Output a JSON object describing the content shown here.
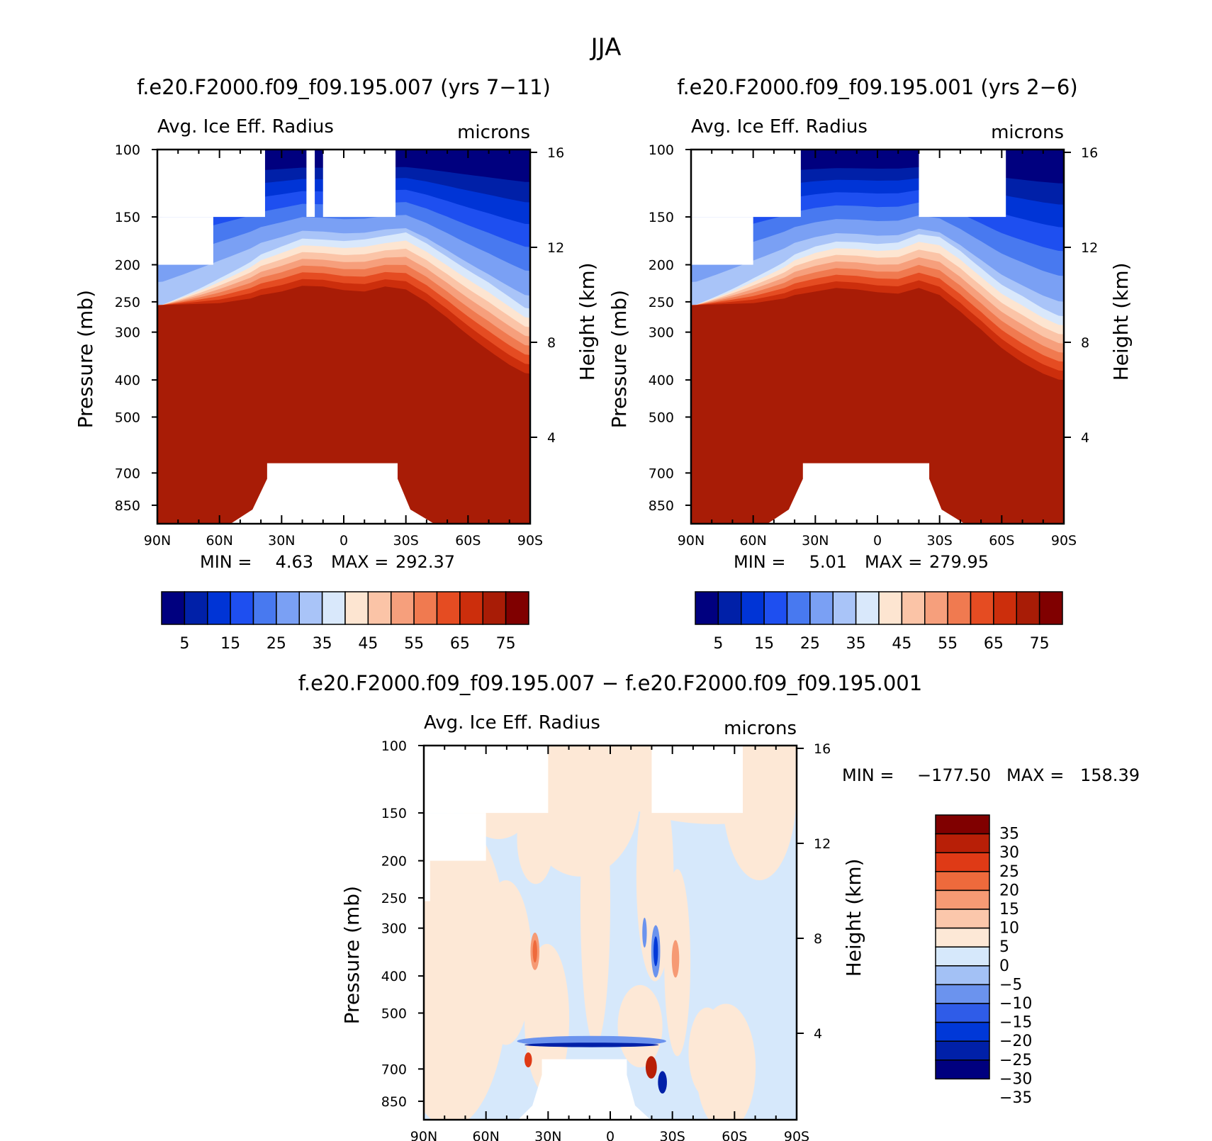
{
  "page_title": "JJA",
  "colors": {
    "seq": [
      "#00007f",
      "#0020a8",
      "#0034d6",
      "#1e4ff0",
      "#4879f0",
      "#7aa0f4",
      "#a9c4f8",
      "#d9e8fb",
      "#fde5d1",
      "#fbc4a7",
      "#f69f7c",
      "#f07a50",
      "#e54c22",
      "#cc2e0c",
      "#a81c06",
      "#800000"
    ],
    "div": [
      "#00007f",
      "#0020a8",
      "#0038d8",
      "#2f5ce8",
      "#6b93ee",
      "#a3c1f5",
      "#d6e8fb",
      "#fde8d6",
      "#fbc7ab",
      "#f69a74",
      "#ee6a3c",
      "#df3a16",
      "#b81f07",
      "#800000"
    ]
  },
  "chart_data": [
    {
      "type": "contour",
      "title": "f.e20.F2000.f09_f09.195.007 (yrs 7−11)",
      "subtitle_left": "Avg. Ice Eff. Radius",
      "subtitle_right": "microns",
      "ylabel": "Pressure (mb)",
      "ylabel_right": "Height (km)",
      "x_ticks": [
        "90N",
        "60N",
        "30N",
        "0",
        "30S",
        "60S",
        "90S"
      ],
      "x_range": [
        90,
        -90
      ],
      "y_range_mb": [
        100,
        950
      ],
      "y_ticks": [
        100,
        150,
        200,
        250,
        300,
        400,
        500,
        700,
        850
      ],
      "y_ticks_right_km": [
        4,
        8,
        12,
        16
      ],
      "stats_min_label": "MIN =",
      "stats_min": "4.63",
      "stats_max_label": "MAX =",
      "stats_max": "292.37",
      "colorbar_labels": [
        "5",
        "15",
        "25",
        "35",
        "45",
        "55",
        "65",
        "75"
      ],
      "colorbar_levels": [
        0,
        5,
        10,
        15,
        20,
        25,
        30,
        35,
        40,
        45,
        50,
        55,
        60,
        65,
        70,
        75
      ],
      "contour_tops_mb": {
        "latitudes": [
          88,
          60,
          45,
          40,
          30,
          20,
          10,
          0,
          -10,
          -20,
          -30,
          -40,
          -50,
          -60,
          -70,
          -80,
          -88
        ],
        "top_75_mb": [
          255,
          252,
          245,
          240,
          235,
          227,
          228,
          233,
          235,
          228,
          232,
          250,
          275,
          305,
          335,
          365,
          385
        ],
        "gradient_thickness_mb": [
          0,
          60,
          80,
          85,
          90,
          90,
          90,
          95,
          100,
          95,
          105,
          115,
          130,
          150,
          170,
          185,
          190
        ]
      },
      "missing_regions": [
        {
          "lat_from": 90,
          "lat_to": 38,
          "p_from": 100,
          "p_to": 150
        },
        {
          "lat_from": 90,
          "lat_to": 63,
          "p_from": 150,
          "p_to": 200
        },
        {
          "lat_from": 18,
          "lat_to": 14,
          "p_from": 100,
          "p_to": 150
        },
        {
          "lat_from": 10,
          "lat_to": -25,
          "p_from": 100,
          "p_to": 150
        },
        {
          "lat_from": 37,
          "lat_to": -26,
          "p_from": 660,
          "p_to": 950,
          "shape": "topography"
        }
      ]
    },
    {
      "type": "contour",
      "title": "f.e20.F2000.f09_f09.195.001 (yrs 2−6)",
      "subtitle_left": "Avg. Ice Eff. Radius",
      "subtitle_right": "microns",
      "ylabel": "Pressure (mb)",
      "ylabel_right": "Height (km)",
      "x_ticks": [
        "90N",
        "60N",
        "30N",
        "0",
        "30S",
        "60S",
        "90S"
      ],
      "x_range": [
        90,
        -90
      ],
      "y_range_mb": [
        100,
        950
      ],
      "y_ticks": [
        100,
        150,
        200,
        250,
        300,
        400,
        500,
        700,
        850
      ],
      "y_ticks_right_km": [
        4,
        8,
        12,
        16
      ],
      "stats_min_label": "MIN =",
      "stats_min": "5.01",
      "stats_max_label": "MAX =",
      "stats_max": "279.95",
      "colorbar_labels": [
        "5",
        "15",
        "25",
        "35",
        "45",
        "55",
        "65",
        "75"
      ],
      "colorbar_levels": [
        0,
        5,
        10,
        15,
        20,
        25,
        30,
        35,
        40,
        45,
        50,
        55,
        60,
        65,
        70,
        75
      ],
      "contour_tops_mb": {
        "latitudes": [
          88,
          60,
          45,
          40,
          30,
          20,
          10,
          0,
          -10,
          -20,
          -30,
          -40,
          -50,
          -60,
          -70,
          -80,
          -88
        ],
        "top_75_mb": [
          255,
          252,
          245,
          240,
          235,
          230,
          232,
          236,
          238,
          230,
          240,
          265,
          295,
          330,
          360,
          385,
          400
        ],
        "gradient_thickness_mb": [
          0,
          60,
          80,
          85,
          90,
          90,
          92,
          95,
          100,
          100,
          110,
          125,
          140,
          160,
          180,
          190,
          195
        ]
      },
      "missing_regions": [
        {
          "lat_from": 90,
          "lat_to": 37,
          "p_from": 100,
          "p_to": 150
        },
        {
          "lat_from": 90,
          "lat_to": 60,
          "p_from": 150,
          "p_to": 200
        },
        {
          "lat_from": -20,
          "lat_to": -62,
          "p_from": 100,
          "p_to": 150
        },
        {
          "lat_from": 36,
          "lat_to": -25,
          "p_from": 660,
          "p_to": 950,
          "shape": "topography"
        }
      ]
    },
    {
      "type": "contour-difference",
      "title": "f.e20.F2000.f09_f09.195.007 − f.e20.F2000.f09_f09.195.001",
      "subtitle_left": "Avg. Ice Eff. Radius",
      "subtitle_right": "microns",
      "ylabel": "Pressure (mb)",
      "ylabel_right": "Height (km)",
      "x_ticks": [
        "90N",
        "60N",
        "30N",
        "0",
        "30S",
        "60S",
        "90S"
      ],
      "x_range": [
        90,
        -90
      ],
      "y_range_mb": [
        100,
        950
      ],
      "y_ticks": [
        100,
        150,
        200,
        250,
        300,
        400,
        500,
        700,
        850
      ],
      "y_ticks_right_km": [
        4,
        8,
        12,
        16
      ],
      "stats_min_label": "MIN =",
      "stats_min": "−177.50",
      "stats_max_label": "MAX =",
      "stats_max": "158.39",
      "colorbar_labels": [
        "35",
        "30",
        "25",
        "20",
        "15",
        "10",
        "5",
        "0",
        "−5",
        "−10",
        "−15",
        "−20",
        "−25",
        "−30",
        "−35"
      ],
      "colorbar_levels": [
        -35,
        -30,
        -25,
        -20,
        -15,
        -10,
        -5,
        0,
        5,
        10,
        15,
        20,
        25,
        30,
        35
      ]
    }
  ]
}
